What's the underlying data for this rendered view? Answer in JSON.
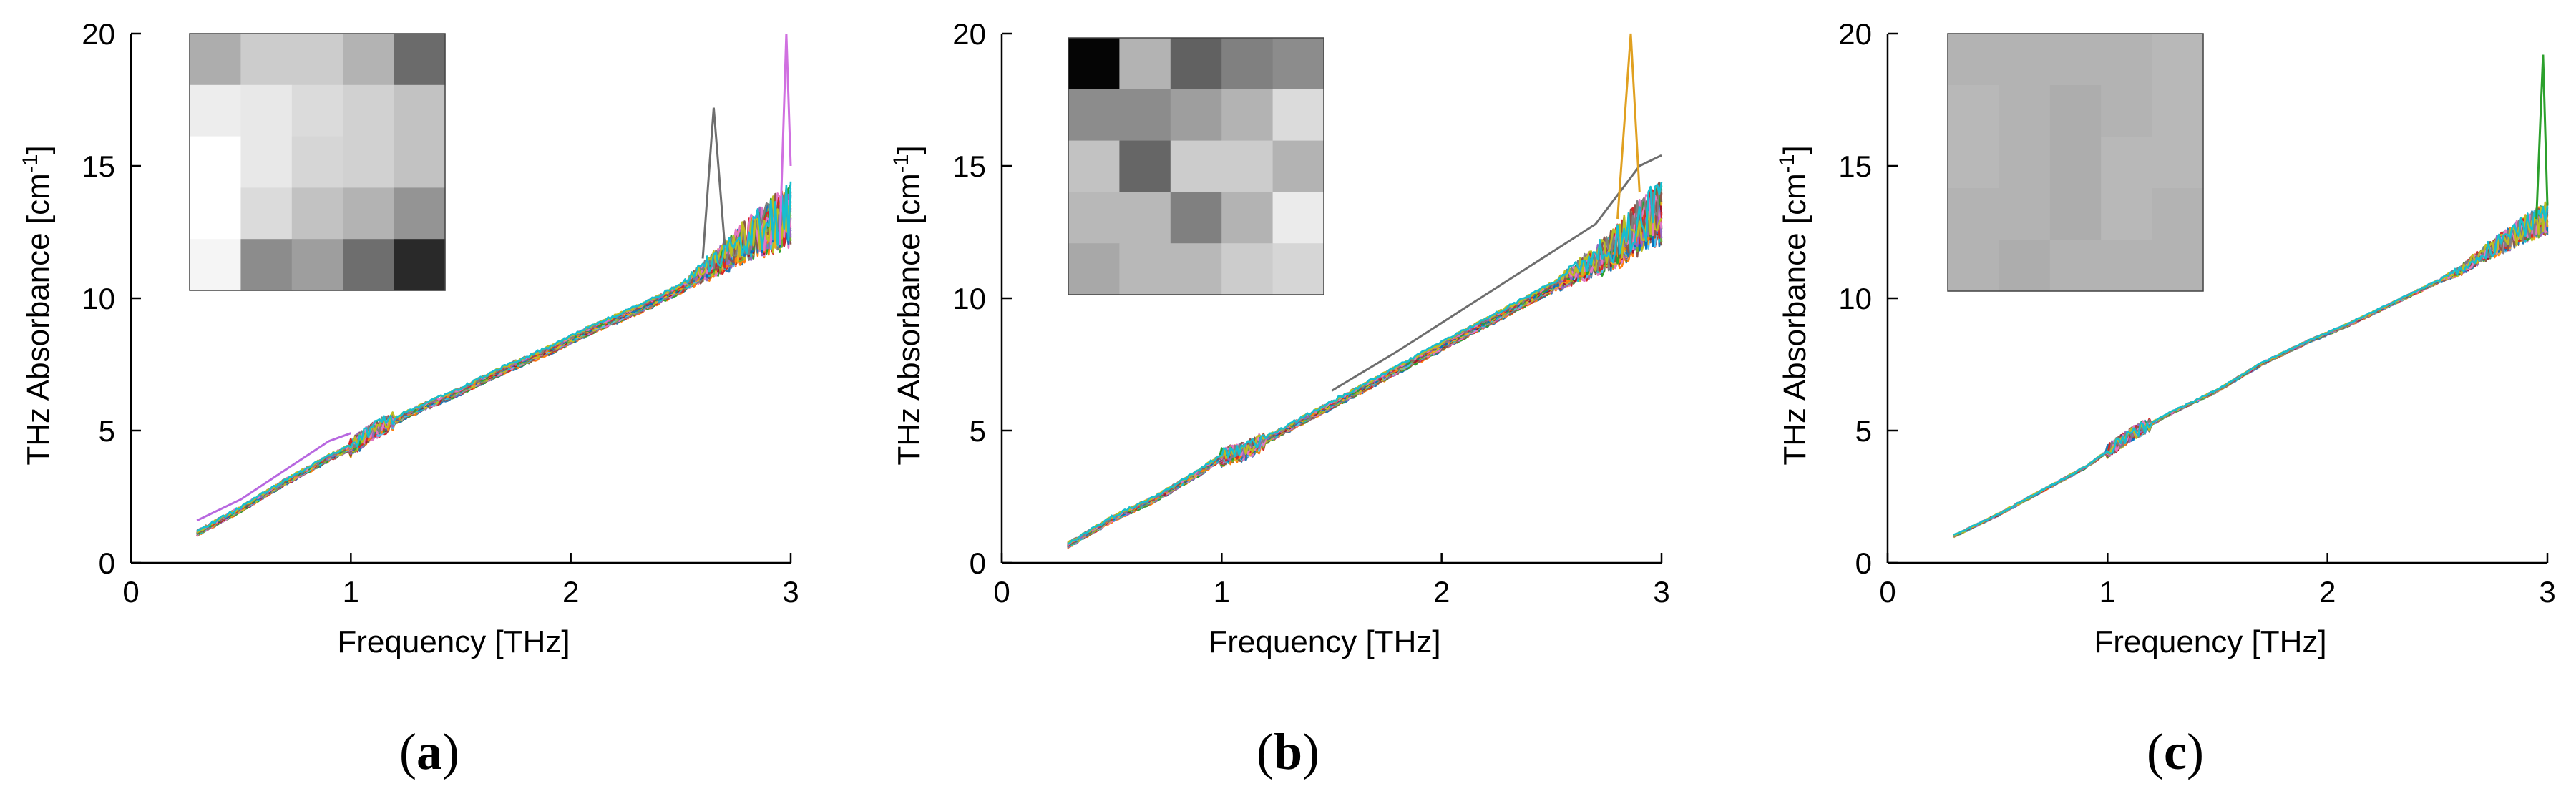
{
  "figure": {
    "panels": [
      "(a)",
      "(b)",
      "(c)"
    ]
  },
  "chart_data": [
    {
      "type": "line",
      "panel_label": "a",
      "title": "",
      "xlabel": "Frequency [THz]",
      "ylabel": "THz Absorbance [cm",
      "ylabel_sup": "-1",
      "ylabel_end": "]",
      "xlim": [
        0,
        3
      ],
      "ylim": [
        0,
        20
      ],
      "xticks": [
        0,
        1,
        2,
        3
      ],
      "yticks": [
        0,
        5,
        10,
        15,
        20
      ],
      "grid": false,
      "n_series": 25,
      "series_spread": 0.28,
      "x_start": 0.3,
      "x_end": 3.0,
      "mean_curve": {
        "x": [
          0.3,
          0.5,
          0.7,
          0.9,
          1.0,
          1.1,
          1.3,
          1.5,
          1.7,
          1.9,
          2.1,
          2.3,
          2.5,
          2.6,
          2.7,
          2.8,
          2.9,
          3.0
        ],
        "y": [
          1.0,
          1.9,
          2.9,
          3.8,
          4.2,
          4.8,
          5.6,
          6.3,
          7.1,
          7.8,
          8.6,
          9.3,
          10.1,
          10.7,
          11.3,
          11.9,
          12.4,
          12.8
        ]
      },
      "outliers": [
        {
          "color": "#b868e0",
          "x": [
            0.3,
            0.5,
            0.7,
            0.9,
            1.0
          ],
          "y": [
            1.6,
            2.4,
            3.5,
            4.6,
            4.9
          ]
        },
        {
          "color": "#6e6e6e",
          "x": [
            2.6,
            2.65,
            2.7
          ],
          "y": [
            11.5,
            17.2,
            12.0
          ]
        },
        {
          "color": "#d070e0",
          "x": [
            2.95,
            2.98,
            3.0
          ],
          "y": [
            12.0,
            20.0,
            15.0
          ]
        }
      ],
      "inset_heatmap": {
        "rows": 5,
        "cols": 5,
        "gray_levels": [
          [
            0.68,
            0.8,
            0.8,
            0.7,
            0.42
          ],
          [
            0.93,
            0.91,
            0.86,
            0.82,
            0.76
          ],
          [
            1.0,
            0.91,
            0.84,
            0.82,
            0.76
          ],
          [
            1.0,
            0.86,
            0.76,
            0.7,
            0.58
          ],
          [
            0.96,
            0.55,
            0.62,
            0.43,
            0.16
          ]
        ]
      }
    },
    {
      "type": "line",
      "panel_label": "b",
      "title": "",
      "xlabel": "Frequency [THz]",
      "ylabel": "THz Absorbance [cm",
      "ylabel_sup": "-1",
      "ylabel_end": "]",
      "xlim": [
        0,
        3
      ],
      "ylim": [
        0,
        20
      ],
      "xticks": [
        0,
        1,
        2,
        3
      ],
      "yticks": [
        0,
        5,
        10,
        15,
        20
      ],
      "grid": false,
      "n_series": 25,
      "series_spread": 0.3,
      "x_start": 0.3,
      "x_end": 3.0,
      "mean_curve": {
        "x": [
          0.3,
          0.5,
          0.7,
          0.9,
          1.0,
          1.1,
          1.3,
          1.5,
          1.7,
          1.9,
          2.1,
          2.3,
          2.5,
          2.6,
          2.7,
          2.8,
          2.9,
          3.0
        ],
        "y": [
          0.8,
          1.8,
          2.6,
          3.6,
          4.2,
          4.4,
          5.3,
          6.2,
          7.1,
          8.0,
          8.9,
          9.8,
          10.7,
          11.2,
          11.7,
          12.3,
          13.0,
          13.6
        ]
      },
      "outliers": [
        {
          "color": "#6e6e6e",
          "x": [
            1.5,
            1.8,
            2.1,
            2.4,
            2.7,
            2.9,
            3.0
          ],
          "y": [
            6.5,
            8.0,
            9.6,
            11.2,
            12.8,
            15.0,
            15.4
          ]
        },
        {
          "color": "#e0a020",
          "x": [
            2.8,
            2.86,
            2.9
          ],
          "y": [
            13.0,
            20.0,
            14.0
          ]
        }
      ],
      "inset_heatmap": {
        "rows": 5,
        "cols": 5,
        "gray_levels": [
          [
            0.02,
            0.7,
            0.38,
            0.5,
            0.55
          ],
          [
            0.55,
            0.55,
            0.62,
            0.7,
            0.86
          ],
          [
            0.76,
            0.4,
            0.8,
            0.8,
            0.7
          ],
          [
            0.72,
            0.72,
            0.5,
            0.7,
            0.92
          ],
          [
            0.66,
            0.72,
            0.72,
            0.8,
            0.84
          ]
        ]
      }
    },
    {
      "type": "line",
      "panel_label": "c",
      "title": "",
      "xlabel": "Frequency [THz]",
      "ylabel": "THz Absorbance [cm",
      "ylabel_sup": "-1",
      "ylabel_end": "]",
      "xlim": [
        0,
        3
      ],
      "ylim": [
        0,
        20
      ],
      "xticks": [
        0,
        1,
        2,
        3
      ],
      "yticks": [
        0,
        5,
        10,
        15,
        20
      ],
      "grid": false,
      "n_series": 25,
      "series_spread": 0.08,
      "x_start": 0.3,
      "x_end": 3.0,
      "mean_curve": {
        "x": [
          0.3,
          0.5,
          0.7,
          0.9,
          1.0,
          1.1,
          1.3,
          1.5,
          1.7,
          1.9,
          2.1,
          2.3,
          2.5,
          2.6,
          2.7,
          2.8,
          2.9,
          3.0
        ],
        "y": [
          1.0,
          1.8,
          2.7,
          3.6,
          4.2,
          4.8,
          5.7,
          6.5,
          7.5,
          8.3,
          9.0,
          9.8,
          10.6,
          11.0,
          11.6,
          12.1,
          12.6,
          13.0
        ]
      },
      "outliers": [
        {
          "color": "#2ca02c",
          "x": [
            2.95,
            2.98,
            3.0
          ],
          "y": [
            13.0,
            19.2,
            13.5
          ]
        }
      ],
      "inset_heatmap": {
        "rows": 5,
        "cols": 5,
        "gray_levels": [
          [
            0.7,
            0.7,
            0.7,
            0.7,
            0.72
          ],
          [
            0.72,
            0.7,
            0.68,
            0.7,
            0.72
          ],
          [
            0.72,
            0.7,
            0.68,
            0.72,
            0.72
          ],
          [
            0.7,
            0.7,
            0.68,
            0.72,
            0.7
          ],
          [
            0.7,
            0.68,
            0.7,
            0.7,
            0.7
          ]
        ]
      }
    }
  ],
  "palette": [
    "#1f77b4",
    "#ff7f0e",
    "#2ca02c",
    "#d62728",
    "#9467bd",
    "#8c564b",
    "#e377c2",
    "#7f7f7f",
    "#bcbd22",
    "#17becf",
    "#4dbeee",
    "#a2142f",
    "#77ac30",
    "#edb120",
    "#0072bd"
  ]
}
